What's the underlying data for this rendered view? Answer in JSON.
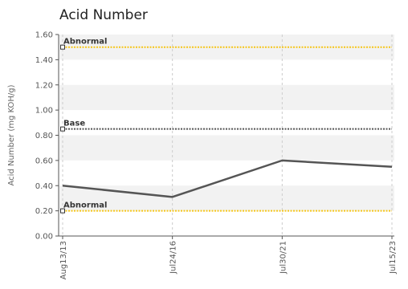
{
  "chart_data": {
    "type": "line",
    "title": "Acid Number",
    "ylabel": "Acid Number (mg KOH/g)",
    "xlabel": "",
    "ylim": [
      0,
      1.6
    ],
    "yticks": [
      "0.00",
      "0.20",
      "0.40",
      "0.60",
      "0.80",
      "1.00",
      "1.20",
      "1.40",
      "1.60"
    ],
    "categories": [
      "Aug13/13",
      "Jul24/16",
      "Jul30/21",
      "Jul15/23"
    ],
    "series": [
      {
        "values": [
          0.4,
          0.31,
          0.6,
          0.55
        ],
        "color": "#555555"
      }
    ],
    "reference_lines": [
      {
        "label": "Abnormal",
        "value": 1.5,
        "color": "#f5c518",
        "style": "dotted"
      },
      {
        "label": "Base",
        "value": 0.85,
        "color": "#555555",
        "style": "dotted"
      },
      {
        "label": "Abnormal",
        "value": 0.2,
        "color": "#f5c518",
        "style": "dotted"
      }
    ],
    "grid": true,
    "band_color": "#f2f2f2"
  }
}
